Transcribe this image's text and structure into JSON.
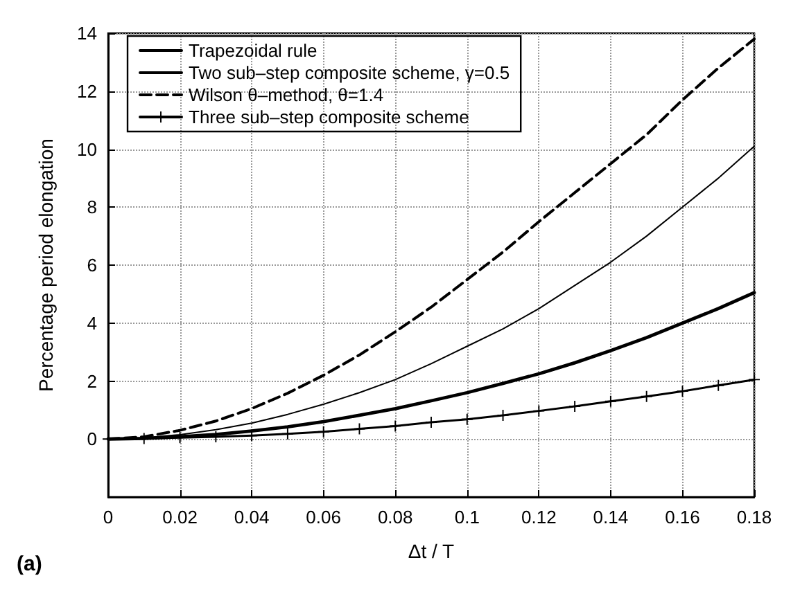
{
  "chart_data": {
    "type": "line",
    "xlabel": "Δt / T",
    "ylabel": "Percentage period elongation",
    "annotations": [
      "(a)"
    ],
    "x": [
      0,
      0.01,
      0.02,
      0.03,
      0.04,
      0.05,
      0.06,
      0.07,
      0.08,
      0.09,
      0.1,
      0.11,
      0.12,
      0.13,
      0.14,
      0.15,
      0.16,
      0.17,
      0.18
    ],
    "series": [
      {
        "name": "Trapezoidal rule",
        "color": "#000000",
        "line_style": "solid",
        "marker": "none",
        "values": [
          0,
          0.04,
          0.15,
          0.32,
          0.55,
          0.85,
          1.2,
          1.6,
          2.05,
          2.6,
          3.2,
          3.8,
          4.5,
          5.3,
          6.1,
          7.0,
          8.0,
          9.0,
          10.1
        ]
      },
      {
        "name": "Two sub–step composite scheme, γ=0.5",
        "color": "#000000",
        "line_style": "solid",
        "marker": "none",
        "values": [
          0,
          0.02,
          0.08,
          0.16,
          0.28,
          0.42,
          0.6,
          0.82,
          1.05,
          1.32,
          1.6,
          1.92,
          2.25,
          2.63,
          3.05,
          3.5,
          4.0,
          4.5,
          5.05
        ]
      },
      {
        "name": "Wilson θ–method, θ=1.4",
        "color": "#000000",
        "line_style": "dashed",
        "marker": "none",
        "values": [
          0,
          0.08,
          0.3,
          0.62,
          1.05,
          1.58,
          2.2,
          2.9,
          3.7,
          4.55,
          5.5,
          6.45,
          7.5,
          8.5,
          9.5,
          10.5,
          11.7,
          12.8,
          13.8
        ]
      },
      {
        "name": "Three sub–step composite scheme",
        "color": "#000000",
        "line_style": "solid",
        "marker": "cross",
        "values": [
          0,
          0.02,
          0.05,
          0.08,
          0.12,
          0.18,
          0.25,
          0.35,
          0.45,
          0.58,
          0.68,
          0.82,
          0.97,
          1.13,
          1.3,
          1.47,
          1.65,
          1.85,
          2.05
        ]
      }
    ],
    "xlim": [
      0,
      0.18
    ],
    "xticks": [
      0,
      0.02,
      0.04,
      0.06,
      0.08,
      0.1,
      0.12,
      0.14,
      0.16,
      0.18
    ],
    "ylim": [
      -2,
      14
    ],
    "yticks": [
      {
        "value": -2,
        "label": null
      },
      0,
      2,
      4,
      6,
      8,
      10,
      12,
      14
    ],
    "grid": true,
    "legend": "top left"
  }
}
